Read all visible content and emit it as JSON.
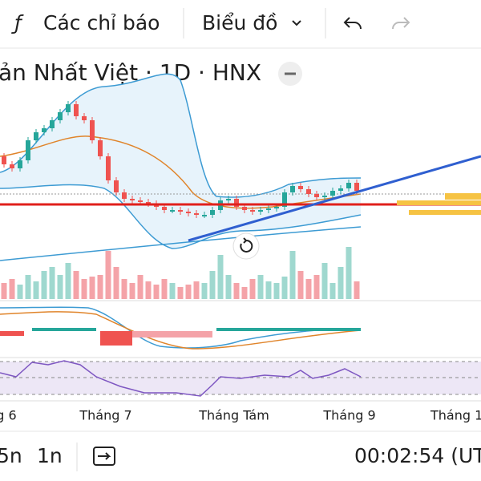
{
  "toolbar": {
    "indicators": "Các chỉ báo",
    "chart": "Biểu đồ"
  },
  "header": {
    "title": "ản Nhất Việt · 1D · HNX"
  },
  "x_labels": [
    "g 6",
    "Tháng 7",
    "Tháng Tám",
    "Tháng 9",
    "Tháng 1"
  ],
  "bottom": {
    "ranges": [
      "5n",
      "1n"
    ],
    "clock": "00:02:54 (UT"
  },
  "candles": {
    "close": [
      9.5,
      9.0,
      10.0,
      12.5,
      13.5,
      14.0,
      15.0,
      16.0,
      17.0,
      15.5,
      15.0,
      12.5,
      10.5,
      7.5,
      6.0,
      5.2,
      5.0,
      4.8,
      4.6,
      4.2,
      3.8,
      3.8,
      3.6,
      3.4,
      3.2,
      3.2,
      3.8,
      5.0,
      5.2,
      4.2,
      3.8,
      3.6,
      3.8,
      4.0,
      4.2,
      6.0,
      6.8,
      6.4,
      5.8,
      5.4,
      5.6,
      6.2,
      6.5,
      7.2,
      6.2
    ],
    "open": [
      10.5,
      9.5,
      9.0,
      10.0,
      12.5,
      13.5,
      14.0,
      15.0,
      16.0,
      17.0,
      15.5,
      15.0,
      12.5,
      10.5,
      7.5,
      6.0,
      5.2,
      5.0,
      4.8,
      4.6,
      4.2,
      3.8,
      3.8,
      3.6,
      3.4,
      3.2,
      3.2,
      3.8,
      5.0,
      5.2,
      4.2,
      3.8,
      3.6,
      3.8,
      4.0,
      4.2,
      6.0,
      6.8,
      6.4,
      5.8,
      5.4,
      5.6,
      6.2,
      6.5,
      7.2
    ],
    "volume": [
      20,
      25,
      18,
      30,
      22,
      35,
      40,
      30,
      45,
      35,
      25,
      28,
      30,
      60,
      40,
      25,
      20,
      30,
      22,
      18,
      25,
      20,
      15,
      18,
      22,
      20,
      35,
      55,
      30,
      20,
      15,
      25,
      30,
      22,
      20,
      28,
      60,
      35,
      25,
      30,
      45,
      20,
      40,
      65,
      22
    ],
    "up_color": "#26a69a",
    "down_color": "#ef5350",
    "up_volume_color": "#9fd8cf",
    "down_volume_color": "#f4a3a8"
  }
}
